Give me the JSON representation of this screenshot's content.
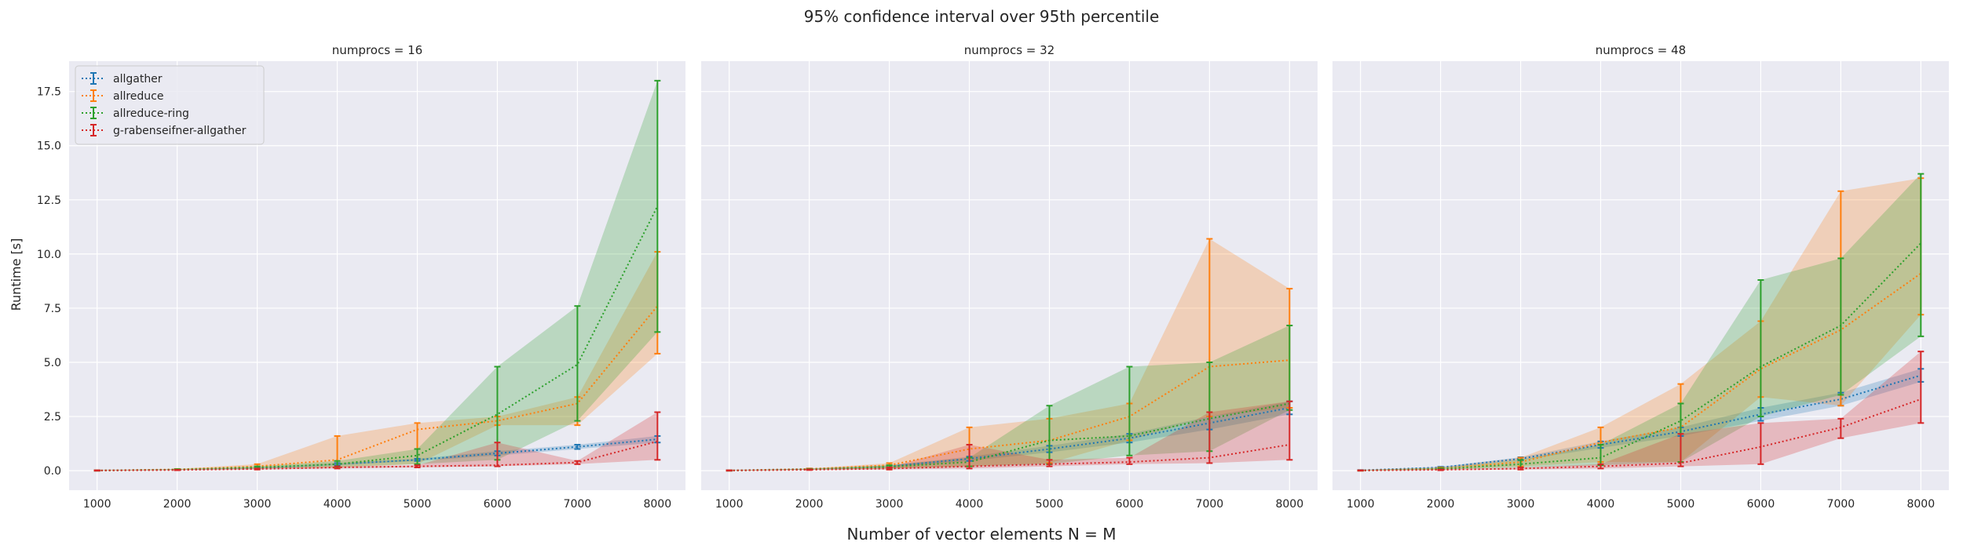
{
  "figure": {
    "suptitle": "95% confidence interval over 95th percentile",
    "xlabel": "Number of vector elements N = M",
    "ylabel": "Runtime [s]"
  },
  "legend": {
    "placement": "upper-left of first panel",
    "entries": [
      {
        "label": "allgather",
        "color": "#1f77b4"
      },
      {
        "label": "allreduce",
        "color": "#ff7f0e"
      },
      {
        "label": "allreduce-ring",
        "color": "#2ca02c"
      },
      {
        "label": "g-rabenseifner-allgather",
        "color": "#d62728"
      }
    ]
  },
  "chart_data": {
    "type": "line",
    "style": "dotted lines with error bars and shaded confidence bands",
    "grid": true,
    "sharey": true,
    "x_ticks": [
      1000,
      2000,
      3000,
      4000,
      5000,
      6000,
      7000,
      8000
    ],
    "y_ticks": [
      0.0,
      2.5,
      5.0,
      7.5,
      10.0,
      12.5,
      15.0,
      17.5
    ],
    "y_tick_labels": [
      "0.0",
      "2.5",
      "5.0",
      "7.5",
      "10.0",
      "12.5",
      "15.0",
      "17.5"
    ],
    "xlim": [
      650,
      8350
    ],
    "ylim": [
      -0.9,
      18.9
    ],
    "x": [
      1000,
      2000,
      3000,
      4000,
      5000,
      6000,
      7000,
      8000
    ],
    "panels": [
      {
        "title": "numprocs = 16",
        "series": [
          {
            "name": "allgather",
            "color": "#1f77b4",
            "y": [
              0.01,
              0.05,
              0.12,
              0.3,
              0.5,
              0.8,
              1.1,
              1.45
            ],
            "lo": [
              0.0,
              0.04,
              0.1,
              0.25,
              0.45,
              0.7,
              1.0,
              1.3
            ],
            "hi": [
              0.02,
              0.06,
              0.14,
              0.35,
              0.55,
              0.9,
              1.2,
              1.6
            ]
          },
          {
            "name": "allreduce",
            "color": "#ff7f0e",
            "y": [
              0.01,
              0.06,
              0.2,
              0.5,
              1.9,
              2.3,
              3.1,
              7.6
            ],
            "lo": [
              0.0,
              0.04,
              0.1,
              0.15,
              0.3,
              2.1,
              2.1,
              5.4
            ],
            "hi": [
              0.02,
              0.08,
              0.3,
              1.6,
              2.2,
              2.5,
              3.4,
              10.1
            ]
          },
          {
            "name": "allreduce-ring",
            "color": "#2ca02c",
            "y": [
              0.01,
              0.05,
              0.15,
              0.3,
              0.7,
              2.6,
              4.9,
              12.2
            ],
            "lo": [
              0.0,
              0.03,
              0.08,
              0.18,
              0.3,
              0.5,
              2.3,
              6.4
            ],
            "hi": [
              0.02,
              0.07,
              0.2,
              0.45,
              1.0,
              4.8,
              7.6,
              18.0
            ]
          },
          {
            "name": "g-rabenseifner-allgather",
            "color": "#d62728",
            "y": [
              0.01,
              0.03,
              0.08,
              0.15,
              0.2,
              0.25,
              0.38,
              1.35
            ],
            "lo": [
              0.0,
              0.02,
              0.05,
              0.1,
              0.15,
              0.2,
              0.3,
              0.5
            ],
            "hi": [
              0.02,
              0.04,
              0.1,
              0.2,
              0.25,
              1.3,
              0.45,
              2.7
            ]
          }
        ]
      },
      {
        "title": "numprocs = 32",
        "series": [
          {
            "name": "allgather",
            "color": "#1f77b4",
            "y": [
              0.01,
              0.08,
              0.2,
              0.55,
              1.0,
              1.5,
              2.2,
              2.9
            ],
            "lo": [
              0.0,
              0.06,
              0.15,
              0.45,
              0.85,
              1.3,
              1.9,
              2.6
            ],
            "hi": [
              0.02,
              0.1,
              0.25,
              0.65,
              1.15,
              1.7,
              2.5,
              3.2
            ]
          },
          {
            "name": "allreduce",
            "color": "#ff7f0e",
            "y": [
              0.01,
              0.08,
              0.25,
              1.0,
              1.4,
              2.5,
              4.8,
              5.1
            ],
            "lo": [
              0.0,
              0.05,
              0.1,
              0.2,
              0.35,
              1.4,
              2.5,
              2.9
            ],
            "hi": [
              0.02,
              0.1,
              0.35,
              2.0,
              2.4,
              3.1,
              10.7,
              8.4
            ]
          },
          {
            "name": "allreduce-ring",
            "color": "#2ca02c",
            "y": [
              0.01,
              0.06,
              0.18,
              0.4,
              1.4,
              1.6,
              2.4,
              3.1
            ],
            "lo": [
              0.0,
              0.04,
              0.1,
              0.2,
              0.3,
              0.7,
              0.9,
              2.8
            ],
            "hi": [
              0.02,
              0.08,
              0.25,
              0.6,
              3.0,
              4.8,
              5.0,
              6.7
            ]
          },
          {
            "name": "g-rabenseifner-allgather",
            "color": "#d62728",
            "y": [
              0.01,
              0.04,
              0.1,
              0.2,
              0.3,
              0.4,
              0.6,
              1.2
            ],
            "lo": [
              0.0,
              0.03,
              0.05,
              0.1,
              0.2,
              0.3,
              0.35,
              0.5
            ],
            "hi": [
              0.02,
              0.06,
              0.15,
              1.2,
              0.5,
              0.6,
              2.7,
              3.2
            ]
          }
        ]
      },
      {
        "title": "numprocs = 48",
        "series": [
          {
            "name": "allgather",
            "color": "#1f77b4",
            "y": [
              0.02,
              0.15,
              0.55,
              1.2,
              1.8,
              2.6,
              3.3,
              4.4
            ],
            "lo": [
              0.01,
              0.12,
              0.48,
              1.05,
              1.6,
              2.3,
              3.0,
              4.1
            ],
            "hi": [
              0.03,
              0.18,
              0.62,
              1.35,
              2.0,
              2.9,
              3.6,
              4.7
            ]
          },
          {
            "name": "allreduce",
            "color": "#ff7f0e",
            "y": [
              0.01,
              0.1,
              0.4,
              1.3,
              2.0,
              4.7,
              6.5,
              9.1
            ],
            "lo": [
              0.0,
              0.05,
              0.2,
              0.4,
              0.4,
              3.4,
              3.0,
              7.2
            ],
            "hi": [
              0.02,
              0.15,
              0.6,
              2.0,
              4.0,
              6.9,
              12.9,
              13.5
            ]
          },
          {
            "name": "allreduce-ring",
            "color": "#2ca02c",
            "y": [
              0.01,
              0.08,
              0.3,
              0.6,
              2.3,
              4.8,
              6.7,
              10.5
            ],
            "lo": [
              0.0,
              0.05,
              0.15,
              0.25,
              0.4,
              2.5,
              3.5,
              6.2
            ],
            "hi": [
              0.02,
              0.12,
              0.5,
              1.2,
              3.1,
              8.8,
              9.8,
              13.7
            ]
          },
          {
            "name": "g-rabenseifner-allgather",
            "color": "#d62728",
            "y": [
              0.01,
              0.04,
              0.1,
              0.2,
              0.35,
              1.1,
              2.0,
              3.3
            ],
            "lo": [
              0.0,
              0.02,
              0.05,
              0.1,
              0.2,
              0.3,
              1.5,
              2.2
            ],
            "hi": [
              0.02,
              0.06,
              0.15,
              0.3,
              1.7,
              2.2,
              2.4,
              5.5
            ]
          }
        ]
      }
    ]
  }
}
